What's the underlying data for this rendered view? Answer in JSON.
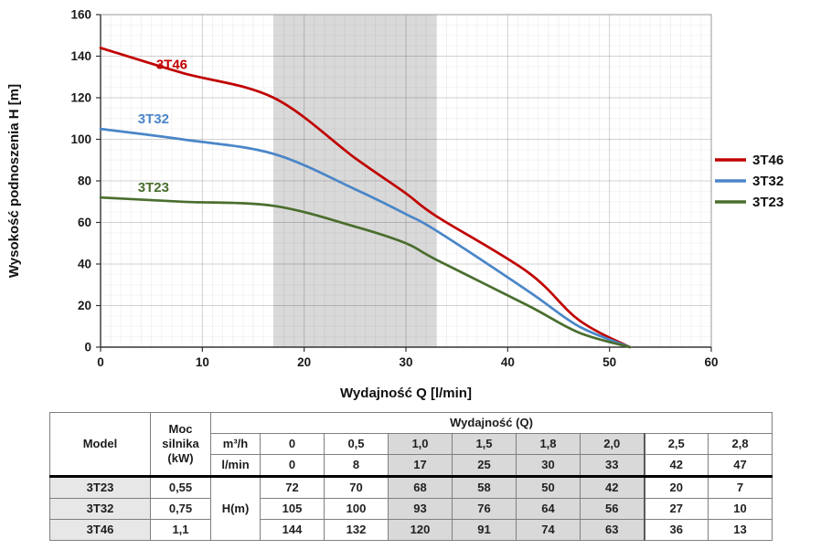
{
  "chart_data": {
    "type": "line",
    "title": "",
    "xlabel": "Wydajność Q [l/min]",
    "ylabel": "Wysokość podnoszenia H [m]",
    "xlim": [
      0,
      60
    ],
    "ylim": [
      0,
      160
    ],
    "xticks": [
      0,
      10,
      20,
      30,
      40,
      50,
      60
    ],
    "yticks": [
      0,
      20,
      40,
      60,
      80,
      100,
      120,
      140,
      160
    ],
    "grid": true,
    "legend_position": "right",
    "shaded_band": {
      "x_start": 17,
      "x_end": 33,
      "color": "#d9d9d9"
    },
    "x": [
      0,
      8,
      17,
      25,
      30,
      33,
      42,
      47,
      52
    ],
    "series": [
      {
        "name": "3T46",
        "color": "#c00000",
        "values": [
          144,
          132,
          120,
          91,
          74,
          63,
          36,
          13,
          0
        ],
        "label_x": 7.0,
        "label_y": 136
      },
      {
        "name": "3T32",
        "color": "#4a86c8",
        "values": [
          105,
          100,
          93,
          76,
          64,
          56,
          27,
          10,
          0
        ],
        "label_x": 5.2,
        "label_y": 110
      },
      {
        "name": "3T23",
        "color": "#4a6e2e",
        "values": [
          72,
          70,
          68,
          58,
          50,
          42,
          20,
          7,
          0
        ],
        "label_x": 5.2,
        "label_y": 77
      }
    ],
    "legend_entries": [
      "3T46",
      "3T32",
      "3T23"
    ]
  },
  "table": {
    "header": {
      "model": "Model",
      "power": "Moc silnika (kW)",
      "flow_group": "Wydajność (Q)",
      "unit_m3h": "m³/h",
      "unit_lmin": "l/min",
      "unit_h": "H(m)"
    },
    "m3h_values": [
      "0",
      "0,5",
      "1,0",
      "1,5",
      "1,8",
      "2,0",
      "2,5",
      "2,8"
    ],
    "lmin_values": [
      "0",
      "8",
      "17",
      "25",
      "30",
      "33",
      "42",
      "47"
    ],
    "shaded_columns": [
      2,
      3,
      4,
      5
    ],
    "rows": [
      {
        "model": "3T23",
        "power": "0,55",
        "h_values": [
          "72",
          "70",
          "68",
          "58",
          "50",
          "42",
          "20",
          "7"
        ]
      },
      {
        "model": "3T32",
        "power": "0,75",
        "h_values": [
          "105",
          "100",
          "93",
          "76",
          "64",
          "56",
          "27",
          "10"
        ]
      },
      {
        "model": "3T46",
        "power": "1,1",
        "h_values": [
          "144",
          "132",
          "120",
          "91",
          "74",
          "63",
          "36",
          "13"
        ]
      }
    ]
  }
}
